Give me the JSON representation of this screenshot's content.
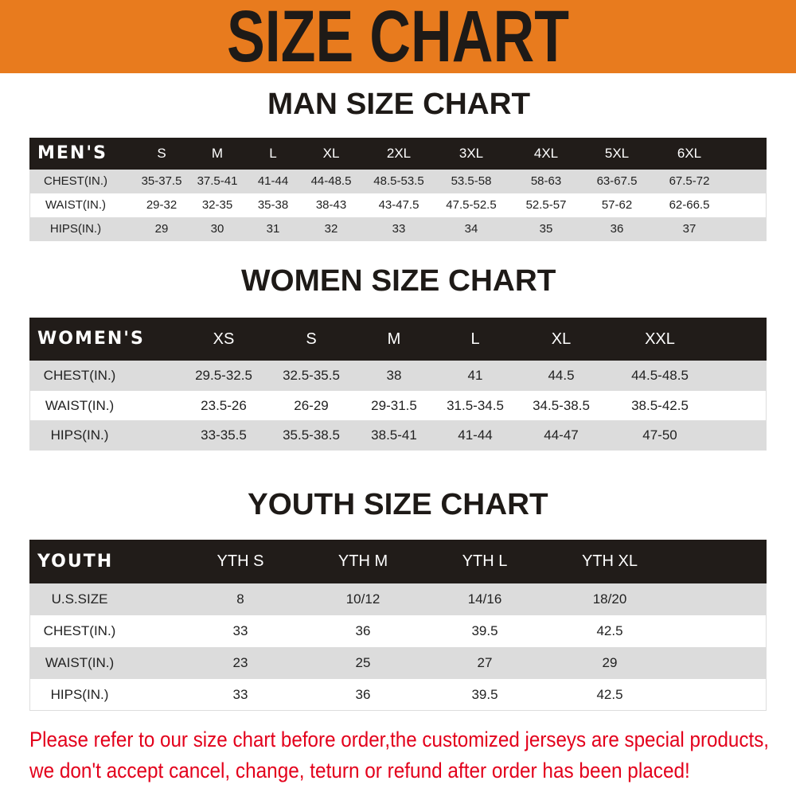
{
  "colors": {
    "banner": "#E87B1E",
    "header_row": "#211c19",
    "stripe": "#dcdcdc",
    "note": "#E3001B"
  },
  "title": "SIZE CHART",
  "men": {
    "title": "MAN SIZE CHART",
    "header_label": "MEN'S",
    "sizes": [
      "S",
      "M",
      "L",
      "XL",
      "2XL",
      "3XL",
      "4XL",
      "5XL",
      "6XL"
    ],
    "rows": [
      {
        "label": "CHEST(IN.)",
        "values": [
          "35-37.5",
          "37.5-41",
          "41-44",
          "44-48.5",
          "48.5-53.5",
          "53.5-58",
          "58-63",
          "63-67.5",
          "67.5-72"
        ]
      },
      {
        "label": "WAIST(IN.)",
        "values": [
          "29-32",
          "32-35",
          "35-38",
          "38-43",
          "43-47.5",
          "47.5-52.5",
          "52.5-57",
          "57-62",
          "62-66.5"
        ]
      },
      {
        "label": "HIPS(IN.)",
        "values": [
          "29",
          "30",
          "31",
          "32",
          "33",
          "34",
          "35",
          "36",
          "37"
        ]
      }
    ]
  },
  "women": {
    "title": "WOMEN SIZE CHART",
    "header_label": "WOMEN'S",
    "sizes": [
      "XS",
      "S",
      "M",
      "L",
      "XL",
      "XXL"
    ],
    "rows": [
      {
        "label": "CHEST(IN.)",
        "values": [
          "29.5-32.5",
          "32.5-35.5",
          "38",
          "41",
          "44.5",
          "44.5-48.5"
        ]
      },
      {
        "label": "WAIST(IN.)",
        "values": [
          "23.5-26",
          "26-29",
          "29-31.5",
          "31.5-34.5",
          "34.5-38.5",
          "38.5-42.5"
        ]
      },
      {
        "label": "HIPS(IN.)",
        "values": [
          "33-35.5",
          "35.5-38.5",
          "38.5-41",
          "41-44",
          "44-47",
          "47-50"
        ]
      }
    ]
  },
  "youth": {
    "title": "YOUTH SIZE CHART",
    "header_label": "YOUTH",
    "sizes": [
      "YTH S",
      "YTH M",
      "YTH L",
      "YTH XL"
    ],
    "rows": [
      {
        "label": "U.S.SIZE",
        "values": [
          "8",
          "10/12",
          "14/16",
          "18/20"
        ]
      },
      {
        "label": "CHEST(IN.)",
        "values": [
          "33",
          "36",
          "39.5",
          "42.5"
        ]
      },
      {
        "label": "WAIST(IN.)",
        "values": [
          "23",
          "25",
          "27",
          "29"
        ]
      },
      {
        "label": "HIPS(IN.)",
        "values": [
          "33",
          "36",
          "39.5",
          "42.5"
        ]
      }
    ]
  },
  "notice": [
    "Please refer to our size chart before order,the customized jerseys are special products,",
    "we don't accept cancel, change, teturn or refund after order has been placed!"
  ]
}
